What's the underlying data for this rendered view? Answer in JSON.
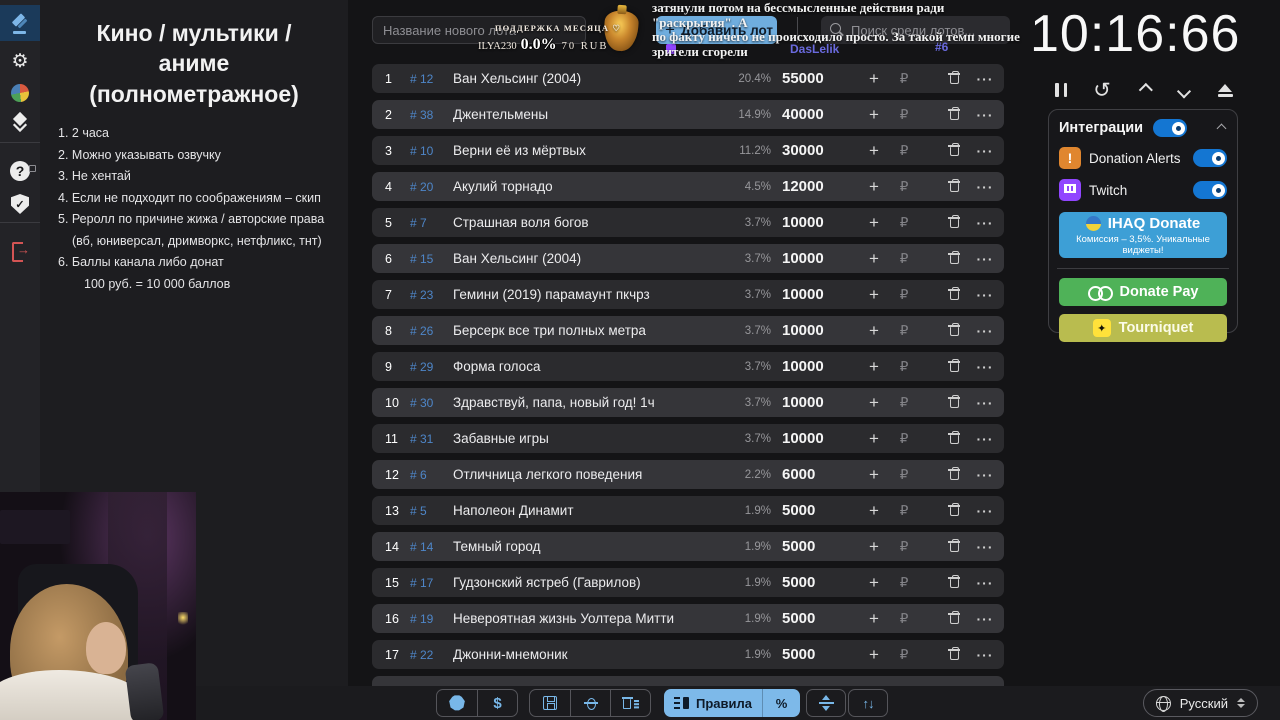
{
  "sidebar": {
    "items": [
      "auction",
      "settings",
      "statistics",
      "history",
      "help",
      "safety",
      "logout"
    ]
  },
  "rules_panel": {
    "title": "Кино / мультики / аниме (полнометражное)",
    "items": [
      {
        "text": "1. 2 часа",
        "indent": false
      },
      {
        "text": "2. Можно указывать озвучку",
        "indent": false
      },
      {
        "text": "3. Не хентай",
        "indent": false
      },
      {
        "text": "4. Если не подходит по соображениям – скип",
        "indent": false
      },
      {
        "text": "5. Реролл по причине жижа / авторские права (вб, юниверсал, дримворкс, нетфликс, тнт)",
        "indent": false
      },
      {
        "text": "6. Баллы канала либо донат",
        "indent": false
      },
      {
        "text": "100 руб. = 10 000 баллов",
        "indent": true
      }
    ]
  },
  "new_lot": {
    "name_placeholder": "Название нового лота",
    "add_plus": "+",
    "add_label": "Добавить лот",
    "search_placeholder": "Поиск среди лотов..."
  },
  "lots": {
    "icons": {
      "plus": "+",
      "ruble": "₽",
      "dots": "···"
    },
    "rows": [
      {
        "pos": "1",
        "id": "# 12",
        "title": "Ван Хельсинг (2004)",
        "percent": "20.4%",
        "amount": "55000"
      },
      {
        "pos": "2",
        "id": "# 38",
        "title": "Джентельмены",
        "percent": "14.9%",
        "amount": "40000"
      },
      {
        "pos": "3",
        "id": "# 10",
        "title": "Верни её из мёртвых",
        "percent": "11.2%",
        "amount": "30000"
      },
      {
        "pos": "4",
        "id": "# 20",
        "title": "Акулий торнадо",
        "percent": "4.5%",
        "amount": "12000"
      },
      {
        "pos": "5",
        "id": "# 7",
        "title": "Страшная воля богов",
        "percent": "3.7%",
        "amount": "10000"
      },
      {
        "pos": "6",
        "id": "# 15",
        "title": "Ван Хельсинг (2004)",
        "percent": "3.7%",
        "amount": "10000"
      },
      {
        "pos": "7",
        "id": "# 23",
        "title": "Гемини (2019) парамаунт пкчрз",
        "percent": "3.7%",
        "amount": "10000"
      },
      {
        "pos": "8",
        "id": "# 26",
        "title": "Берсерк все три полных метра",
        "percent": "3.7%",
        "amount": "10000"
      },
      {
        "pos": "9",
        "id": "# 29",
        "title": "Форма голоса",
        "percent": "3.7%",
        "amount": "10000"
      },
      {
        "pos": "10",
        "id": "# 30",
        "title": "Здравствуй, папа, новый год! 1ч",
        "percent": "3.7%",
        "amount": "10000"
      },
      {
        "pos": "11",
        "id": "# 31",
        "title": "Забавные игры",
        "percent": "3.7%",
        "amount": "10000"
      },
      {
        "pos": "12",
        "id": "# 6",
        "title": "Отличница легкого поведения",
        "percent": "2.2%",
        "amount": "6000"
      },
      {
        "pos": "13",
        "id": "# 5",
        "title": "Наполеон Динамит",
        "percent": "1.9%",
        "amount": "5000"
      },
      {
        "pos": "14",
        "id": "# 14",
        "title": "Темный город",
        "percent": "1.9%",
        "amount": "5000"
      },
      {
        "pos": "15",
        "id": "# 17",
        "title": "Гудзонский ястреб (Гаврилов)",
        "percent": "1.9%",
        "amount": "5000"
      },
      {
        "pos": "16",
        "id": "# 19",
        "title": "Невероятная жизнь Уолтера Митти",
        "percent": "1.9%",
        "amount": "5000"
      },
      {
        "pos": "17",
        "id": "# 22",
        "title": "Джонни-мнемоник",
        "percent": "1.9%",
        "amount": "5000"
      }
    ]
  },
  "timer": {
    "value": "10:16:66"
  },
  "integrations": {
    "title": "Интеграции",
    "services": [
      {
        "name": "Donation Alerts",
        "enabled": true
      },
      {
        "name": "Twitch",
        "enabled": true
      }
    ],
    "ihaq": {
      "label": "IHAQ Donate",
      "subtitle": "Комиссия – 3,5%. Уникальные виджеты!"
    },
    "donate_pay_label": "Donate Pay",
    "tourniquet_label": "Tourniquet"
  },
  "toolbar": {
    "dollar": "$",
    "rules_label": "Правила",
    "percent_label": "%",
    "arrows": "↑↓"
  },
  "glyphs": {
    "question": "?",
    "check": "✓",
    "reset": "↺",
    "arrow": "→",
    "da_mark": "!",
    "tq_mark": "✦"
  },
  "language": {
    "selected": "Русский"
  },
  "overlay": {
    "chat_line1": "затянули потом на бессмысленные действия ради \"раскрытия\". А",
    "chat_line2": "по факту ничего не происходило просто. За такой темп многие",
    "chat_line3": "зрители сгорели",
    "chat_user": "DasLelik",
    "chat_user_num": "#6",
    "support_label": "ПОДДЕРЖКА МЕСЯЦА ♡",
    "support_name": "ILYA230",
    "support_percent": "0.0%",
    "support_amount": "70 RUB"
  },
  "colors": {
    "accent_blue": "#6fadde",
    "toggle_blue": "#1476d2",
    "row_dark": "#2b2b2e",
    "row_light": "#353539",
    "ihaq_blue": "#3d9fd6",
    "donate_pay_green": "#4fb258",
    "tourniquet_olive": "#b9bc4f",
    "twitch_purple": "#9146ff",
    "donation_alerts_orange": "#e0862f",
    "logout_red": "#d35454"
  }
}
